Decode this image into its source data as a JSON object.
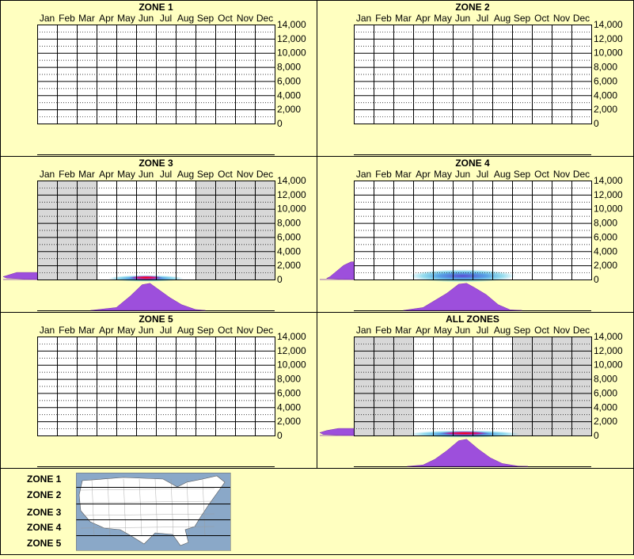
{
  "months": [
    "Jan",
    "Feb",
    "Mar",
    "Apr",
    "May",
    "Jun",
    "Jul",
    "Aug",
    "Sep",
    "Oct",
    "Nov",
    "Dec"
  ],
  "y_ticks": [
    "14,000",
    "12,000",
    "10,000",
    "8,000",
    "6,000",
    "4,000",
    "2,000",
    "0"
  ],
  "colors": {
    "background": "#ffffc0",
    "grid": "#000000",
    "shade": "#d8d8d8",
    "elevation_fill": "#9d4fdc",
    "density_core": "#ff0000",
    "density_mid": "#5040d0",
    "density_outer": "#40c0e0"
  },
  "chart_data": [
    {
      "type": "heatmap",
      "title": "ZONE 1",
      "ylim": [
        0,
        14000
      ],
      "has_data": false,
      "shaded_months": [],
      "density_band": null,
      "elevation_profile": [],
      "month_distribution": []
    },
    {
      "type": "heatmap",
      "title": "ZONE 2",
      "ylim": [
        0,
        14000
      ],
      "has_data": false,
      "shaded_months": [],
      "density_band": null,
      "elevation_profile": [],
      "month_distribution": []
    },
    {
      "type": "heatmap",
      "title": "ZONE 3",
      "ylim": [
        0,
        14000
      ],
      "has_data": true,
      "shaded_months": [
        1,
        2,
        3,
        9,
        10,
        11,
        12
      ],
      "density_band": {
        "center_month": 6.0,
        "month_halfwidth": 1.9,
        "center_elev": 150,
        "elev_halfwidth": 350,
        "core": true
      },
      "elevation_profile": [
        [
          0,
          0.0
        ],
        [
          200,
          0.9
        ],
        [
          400,
          1.0
        ],
        [
          700,
          0.8
        ],
        [
          1000,
          0.6
        ]
      ],
      "month_distribution": [
        [
          3.2,
          0
        ],
        [
          4.5,
          0.1
        ],
        [
          5.2,
          0.5
        ],
        [
          5.8,
          0.9
        ],
        [
          6.2,
          0.95
        ],
        [
          6.7,
          0.7
        ],
        [
          7.2,
          0.45
        ],
        [
          7.8,
          0.2
        ],
        [
          8.5,
          0.03
        ],
        [
          9.0,
          0
        ]
      ]
    },
    {
      "type": "heatmap",
      "title": "ZONE 4",
      "ylim": [
        0,
        14000
      ],
      "has_data": true,
      "shaded_months": [],
      "density_band": {
        "center_month": 6.0,
        "month_halfwidth": 2.7,
        "center_elev": 500,
        "elev_halfwidth": 900,
        "core": false
      },
      "elevation_profile": [
        [
          0,
          0.0
        ],
        [
          150,
          0.8
        ],
        [
          400,
          0.7
        ],
        [
          1000,
          0.55
        ],
        [
          2000,
          0.3
        ],
        [
          2500,
          0.08
        ]
      ],
      "month_distribution": [
        [
          3.0,
          0
        ],
        [
          4.0,
          0.1
        ],
        [
          4.6,
          0.35
        ],
        [
          5.2,
          0.6
        ],
        [
          5.8,
          0.92
        ],
        [
          6.2,
          0.95
        ],
        [
          6.6,
          0.8
        ],
        [
          7.2,
          0.55
        ],
        [
          7.8,
          0.2
        ],
        [
          8.4,
          0.02
        ],
        [
          9.0,
          0
        ]
      ]
    },
    {
      "type": "heatmap",
      "title": "ZONE 5",
      "ylim": [
        0,
        14000
      ],
      "has_data": false,
      "shaded_months": [],
      "density_band": null,
      "elevation_profile": [],
      "month_distribution": []
    },
    {
      "type": "heatmap",
      "title": "ALL ZONES",
      "ylim": [
        0,
        14000
      ],
      "has_data": true,
      "shaded_months": [
        1,
        2,
        3,
        9,
        10,
        11,
        12
      ],
      "density_band": {
        "center_month": 6.1,
        "month_halfwidth": 2.8,
        "center_elev": 200,
        "elev_halfwidth": 500,
        "core": true
      },
      "elevation_profile": [
        [
          0,
          0.0
        ],
        [
          150,
          0.9
        ],
        [
          400,
          1.0
        ],
        [
          700,
          0.8
        ],
        [
          1000,
          0.45
        ]
      ],
      "month_distribution": [
        [
          3.2,
          0
        ],
        [
          4.0,
          0.05
        ],
        [
          4.6,
          0.25
        ],
        [
          5.2,
          0.55
        ],
        [
          5.8,
          0.9
        ],
        [
          6.2,
          0.95
        ],
        [
          6.8,
          0.6
        ],
        [
          7.4,
          0.3
        ],
        [
          8.0,
          0.1
        ],
        [
          8.8,
          0.01
        ],
        [
          9.3,
          0
        ]
      ]
    }
  ],
  "legend": {
    "zones": [
      "ZONE 1",
      "ZONE 2",
      "ZONE 3",
      "ZONE 4",
      "ZONE 5"
    ],
    "map_icon": "us-map-with-zone-bands"
  }
}
